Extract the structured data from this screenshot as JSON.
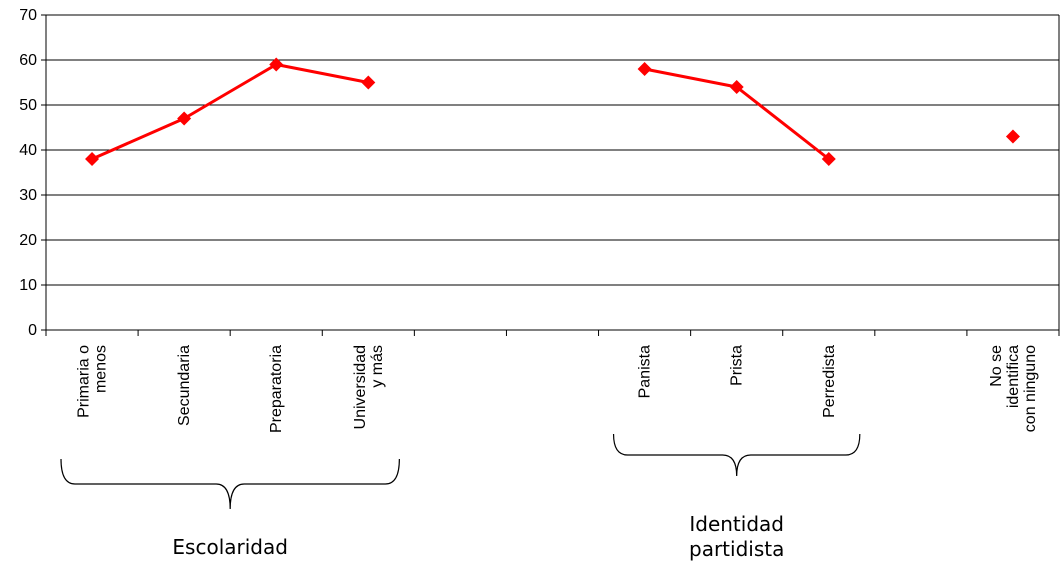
{
  "chart_data": {
    "type": "line",
    "title": "",
    "xlabel": "",
    "ylabel": "",
    "ylim": [
      0,
      70
    ],
    "yticks": [
      0,
      10,
      20,
      30,
      40,
      50,
      60,
      70
    ],
    "grid": true,
    "legend": "none",
    "categories": [
      [
        "Primaria o",
        "menos"
      ],
      [
        "Secundaria"
      ],
      [
        "Preparatoria"
      ],
      [
        "Universidad",
        "y más"
      ],
      [],
      [],
      [
        "Panista"
      ],
      [
        "Prista"
      ],
      [
        "Perredista"
      ],
      [],
      [
        "No se",
        "identifica",
        "con ninguno"
      ]
    ],
    "series": [
      {
        "values": [
          38,
          47,
          59,
          55,
          null,
          null,
          58,
          54,
          38,
          null,
          43
        ]
      }
    ],
    "line_color": "#ff0000",
    "marker_color": "#ff0000",
    "groups": [
      {
        "lines": [
          "Escolaridad"
        ],
        "from": 0,
        "to": 3
      },
      {
        "lines": [
          "Identidad",
          "partidista"
        ],
        "from": 6,
        "to": 8
      }
    ]
  }
}
